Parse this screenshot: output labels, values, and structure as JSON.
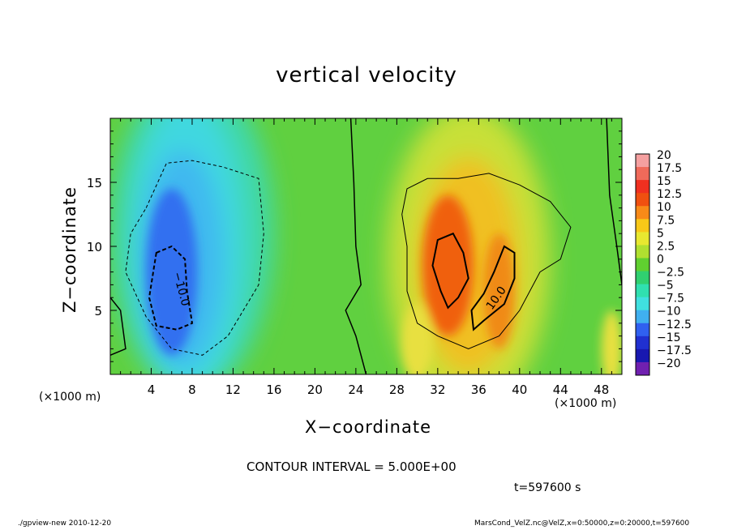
{
  "chart_data": {
    "type": "heatmap",
    "title": "vertical velocity",
    "xlabel": "X−coordinate",
    "ylabel": "Z−coordinate",
    "x_unit": "(×1000 m)",
    "xlim": [
      0,
      50
    ],
    "ylim": [
      0,
      20
    ],
    "x_ticks": [
      4,
      8,
      12,
      16,
      20,
      24,
      28,
      32,
      36,
      40,
      44,
      48
    ],
    "y_ticks": [
      5,
      10,
      15
    ],
    "colorbar": {
      "levels": [
        "20",
        "17.5",
        "15",
        "12.5",
        "10",
        "7.5",
        "5",
        "2.5",
        "0",
        "−2.5",
        "−5",
        "−7.5",
        "−10",
        "−12.5",
        "−15",
        "−17.5",
        "−20"
      ],
      "colors": [
        "#f5a0a0",
        "#f06a5a",
        "#f03020",
        "#f05010",
        "#f88a18",
        "#f8c818",
        "#e8e830",
        "#b0e030",
        "#60d030",
        "#30d070",
        "#30e0b0",
        "#40e0e0",
        "#40b0f0",
        "#3060f0",
        "#2030d0",
        "#1818b0",
        "#7020b0"
      ]
    },
    "contour_labels": [
      "10.0",
      "−10.0"
    ],
    "contour_interval": "CONTOUR INTERVAL = 5.000E+00",
    "time": "t=597600 s",
    "features": [
      {
        "kind": "downdraft",
        "x": 6.5,
        "z": 8,
        "min": -12
      },
      {
        "kind": "updraft",
        "x": 33,
        "z": 8.5,
        "max": 13
      },
      {
        "kind": "updraft",
        "x": 38,
        "z": 6.5,
        "max": 11
      }
    ]
  },
  "footer": {
    "left": "./gpview-new   2010-12-20",
    "right": "MarsCond_VelZ.nc@VelZ,x=0:50000,z=0:20000,t=597600"
  }
}
